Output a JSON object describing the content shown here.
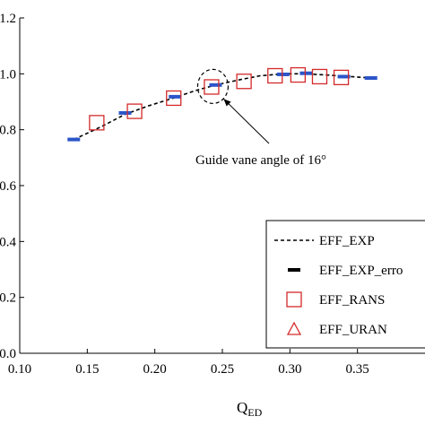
{
  "chart_data": {
    "type": "line",
    "xlabel": "Q",
    "xlabel_sub": "ED",
    "ylabel": "",
    "xlim": [
      0.1,
      0.4
    ],
    "ylim": [
      0.0,
      1.2
    ],
    "x_ticks": [
      "0.10",
      "0.15",
      "0.20",
      "0.25",
      "0.30",
      "0.35"
    ],
    "y_ticks": [
      "0.0",
      "0.2",
      "0.4",
      "0.6",
      "0.8",
      "1.0",
      "1.2"
    ],
    "grid": false,
    "legend_position": "bottom-right",
    "series": [
      {
        "name": "EFF_EXP",
        "style": "dashed-line",
        "color": "#000000",
        "x": [
          0.14,
          0.16,
          0.178,
          0.195,
          0.215,
          0.23,
          0.245,
          0.262,
          0.278,
          0.295,
          0.312,
          0.33,
          0.345,
          0.36
        ],
        "y": [
          0.765,
          0.81,
          0.855,
          0.885,
          0.915,
          0.94,
          0.96,
          0.978,
          0.993,
          1.0,
          1.0,
          0.995,
          0.99,
          0.985
        ]
      },
      {
        "name": "EFF_EXP_erro",
        "style": "thick-dash",
        "color": "#2b55c9",
        "x": [
          0.14,
          0.178,
          0.215,
          0.245,
          0.295,
          0.312,
          0.34,
          0.36
        ],
        "y": [
          0.765,
          0.86,
          0.918,
          0.96,
          0.998,
          1.002,
          0.99,
          0.985
        ]
      },
      {
        "name": "EFF_RANS",
        "style": "open-square",
        "color": "#d42a2a",
        "x": [
          0.157,
          0.185,
          0.214,
          0.242,
          0.266,
          0.289,
          0.306,
          0.322,
          0.338
        ],
        "y": [
          0.825,
          0.866,
          0.913,
          0.953,
          0.973,
          0.993,
          0.996,
          0.99,
          0.987
        ]
      },
      {
        "name": "EFF_URAN",
        "style": "open-triangle",
        "color": "#d42a2a",
        "x": [],
        "y": []
      }
    ],
    "annotation": {
      "text": "Guide vane angle of 16°",
      "target": [
        0.243,
        0.955
      ]
    }
  }
}
